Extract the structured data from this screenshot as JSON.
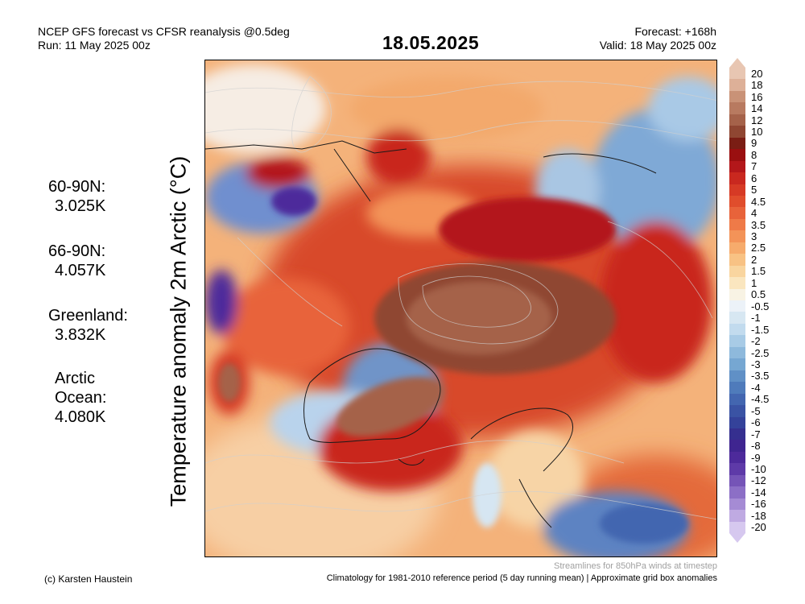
{
  "header": {
    "line1": "NCEP GFS forecast vs CFSR reanalysis @0.5deg",
    "line2": "Run: 11 May 2025 00z",
    "date": "18.05.2025",
    "forecast": "Forecast: +168h",
    "valid": "Valid: 18 May 2025 00z"
  },
  "ylabel": "Temperature anomaly 2m Arctic (°C)",
  "stats": [
    {
      "label": "60-90N:",
      "value": "3.025K"
    },
    {
      "label": "66-90N:",
      "value": "4.057K"
    },
    {
      "label": "Greenland:",
      "value": "3.832K"
    },
    {
      "label": "Arctic Ocean:",
      "value": "4.080K"
    }
  ],
  "colorbar": {
    "labels": [
      "20",
      "18",
      "16",
      "14",
      "12",
      "10",
      "9",
      "8",
      "7",
      "6",
      "5",
      "4.5",
      "4",
      "3.5",
      "3",
      "2.5",
      "2",
      "1.5",
      "1",
      "0.5",
      "-0.5",
      "-1",
      "-1.5",
      "-2",
      "-2.5",
      "-3",
      "-3.5",
      "-4",
      "-4.5",
      "-5",
      "-6",
      "-7",
      "-8",
      "-9",
      "-10",
      "-12",
      "-14",
      "-16",
      "-18",
      "-20"
    ],
    "colors": [
      "#e8c6b2",
      "#ddb098",
      "#c99277",
      "#b87a60",
      "#a5624a",
      "#8f4632",
      "#7a1d14",
      "#9a0f10",
      "#b3171a",
      "#c9281f",
      "#d63a25",
      "#e04d2c",
      "#e8633a",
      "#ef7a48",
      "#f39358",
      "#f6ab6c",
      "#f8c284",
      "#f9d59f",
      "#fae6bf",
      "#f8f3e4",
      "#ecf2f8",
      "#d7e7f2",
      "#c2dbee",
      "#a8cbe6",
      "#8eb9dc",
      "#76a7d2",
      "#6090c6",
      "#4f7bbb",
      "#4366b0",
      "#3a53a4",
      "#34429a",
      "#352f8f",
      "#3f2590",
      "#4d2a9b",
      "#5e3aa8",
      "#7554b7",
      "#8c6fc6",
      "#a58bd4",
      "#bfaae2",
      "#d6c8ef"
    ]
  },
  "footer": {
    "credit": "(c) Karsten Haustein",
    "streamlines": "Streamlines for 850hPa winds at timestep",
    "climatology": "Climatology for 1981-2010 reference period (5 day running mean) | Approximate grid box anomalies"
  }
}
